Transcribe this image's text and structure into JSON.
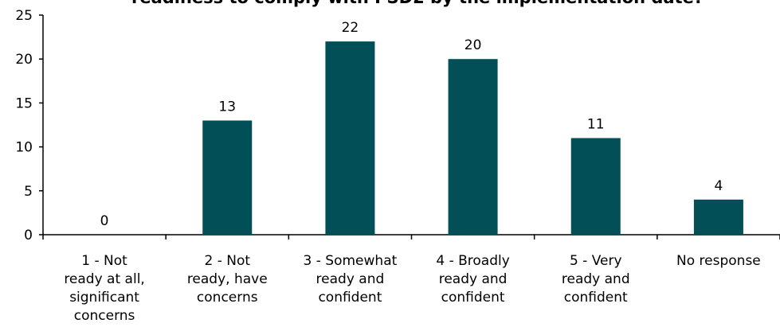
{
  "chart_data": {
    "type": "bar",
    "title": "readiness to comply with PSD2 by the implementation date?",
    "categories": [
      [
        "1 - Not",
        "ready at all,",
        "significant",
        "concerns"
      ],
      [
        "2 - Not",
        "ready, have",
        "concerns"
      ],
      [
        "3 - Somewhat",
        "ready and",
        "confident"
      ],
      [
        "4 - Broadly",
        "ready and",
        "confident"
      ],
      [
        "5 - Very",
        "ready and",
        "confident"
      ],
      [
        "No response"
      ]
    ],
    "values": [
      0,
      13,
      22,
      20,
      11,
      4
    ],
    "data_labels": [
      "0",
      "13",
      "22",
      "20",
      "11",
      "4"
    ],
    "ylim": [
      0,
      25
    ],
    "yticks": [
      0,
      5,
      10,
      15,
      20,
      25
    ],
    "xlabel": "",
    "ylabel": "",
    "grid": false,
    "legend": "none",
    "bar_color": "#024f57"
  }
}
